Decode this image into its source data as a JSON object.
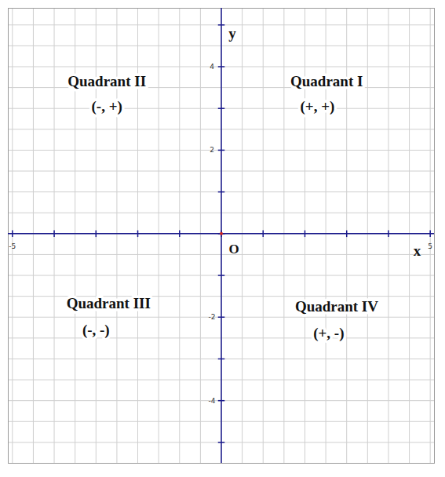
{
  "chart_data": {
    "type": "scatter",
    "x_label": "x",
    "y_label": "y",
    "origin_label": "O",
    "x": [
      0
    ],
    "values": [
      0
    ],
    "color": "#cc2222",
    "xlim": [
      -5.1,
      5.1
    ],
    "ylim": [
      -5.5,
      5.4
    ],
    "xticks": [
      -5,
      5
    ],
    "yticks": [
      -4,
      -2,
      2,
      4
    ],
    "grid": true,
    "annotations": [
      {
        "text": "Quadrant II",
        "x": -2.74,
        "y": 3.65
      },
      {
        "text": "(-, +)",
        "x": -2.74,
        "y": 3.05
      },
      {
        "text": "Quadrant I",
        "x": 2.52,
        "y": 3.65
      },
      {
        "text": "(+, +)",
        "x": 2.3,
        "y": 3.05
      },
      {
        "text": "Quadrant III",
        "x": -2.7,
        "y": -1.67
      },
      {
        "text": "(-, -)",
        "x": -3.0,
        "y": -2.31
      },
      {
        "text": "Quadrant IV",
        "x": 2.76,
        "y": -1.75
      },
      {
        "text": "(+, -)",
        "x": 2.57,
        "y": -2.39
      }
    ]
  }
}
